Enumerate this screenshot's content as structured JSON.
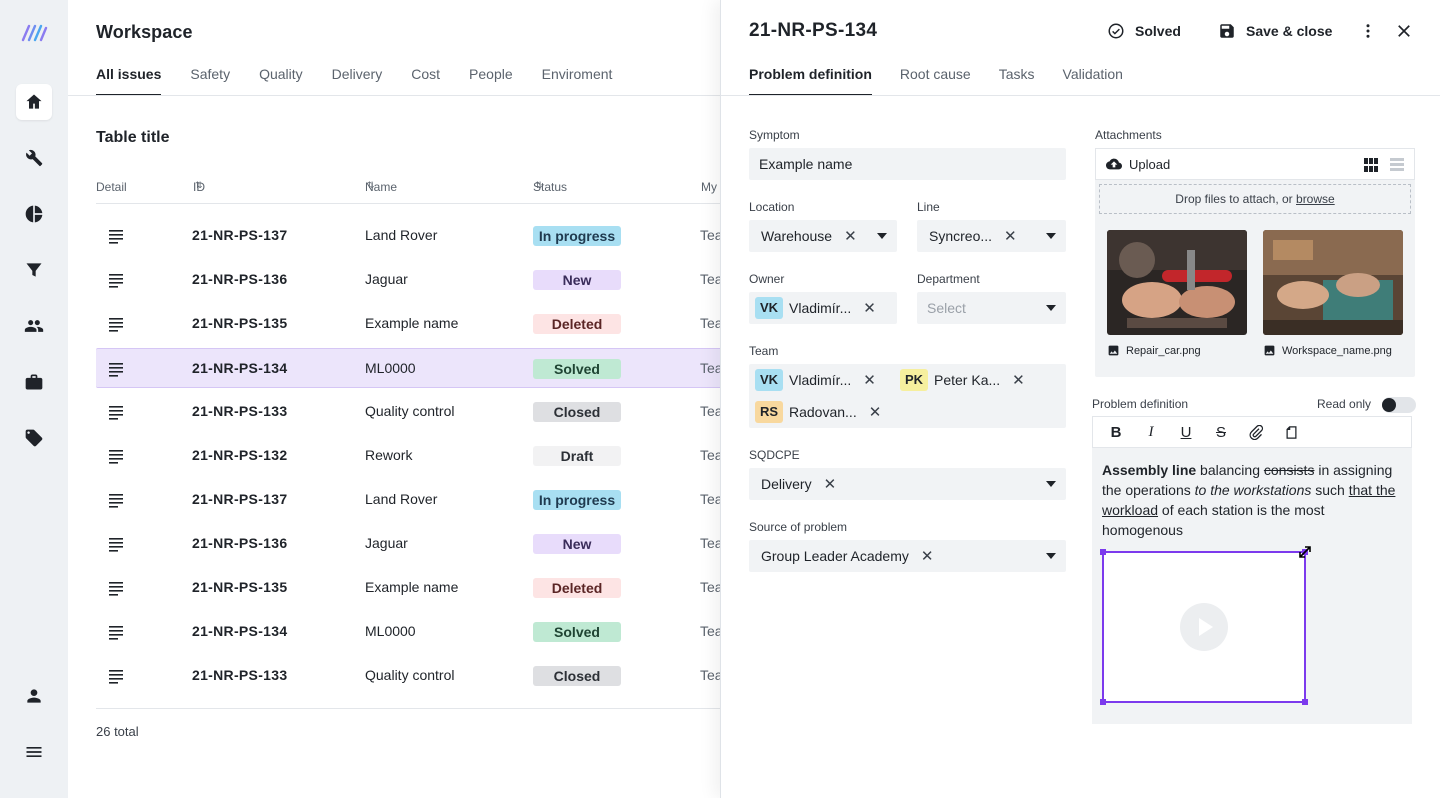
{
  "sidebar": {
    "items": [
      {
        "name": "home",
        "active": true
      },
      {
        "name": "tools"
      },
      {
        "name": "reports"
      },
      {
        "name": "filter"
      },
      {
        "name": "people"
      },
      {
        "name": "briefcase"
      },
      {
        "name": "tags"
      },
      {
        "name": "profile"
      },
      {
        "name": "menu"
      }
    ]
  },
  "workspace": {
    "title": "Workspace",
    "tabs": [
      "All issues",
      "Safety",
      "Quality",
      "Delivery",
      "Cost",
      "People",
      "Enviroment"
    ],
    "active_tab": "All issues",
    "table_title": "Table title",
    "columns": [
      "Detail",
      "ID",
      "Name",
      "Status",
      "My"
    ],
    "rows": [
      {
        "id": "21-NR-PS-137",
        "name": "Land Rover",
        "status": "In progress",
        "team": "Tea"
      },
      {
        "id": "21-NR-PS-136",
        "name": "Jaguar",
        "status": "New",
        "team": "Tea"
      },
      {
        "id": "21-NR-PS-135",
        "name": "Example name",
        "status": "Deleted",
        "team": "Tea"
      },
      {
        "id": "21-NR-PS-134",
        "name": "ML0000",
        "status": "Solved",
        "team": "Tea",
        "selected": true
      },
      {
        "id": "21-NR-PS-133",
        "name": "Quality control",
        "status": "Closed",
        "team": "Tea"
      },
      {
        "id": "21-NR-PS-132",
        "name": "Rework",
        "status": "Draft",
        "team": "Tea"
      },
      {
        "id": "21-NR-PS-137",
        "name": "Land Rover",
        "status": "In progress",
        "team": "Tea"
      },
      {
        "id": "21-NR-PS-136",
        "name": "Jaguar",
        "status": "New",
        "team": "Tea"
      },
      {
        "id": "21-NR-PS-135",
        "name": "Example name",
        "status": "Deleted",
        "team": "Tea"
      },
      {
        "id": "21-NR-PS-134",
        "name": "ML0000",
        "status": "Solved",
        "team": "Tea"
      },
      {
        "id": "21-NR-PS-133",
        "name": "Quality control",
        "status": "Closed",
        "team": "Tea"
      }
    ],
    "total": "26 total"
  },
  "panel": {
    "title": "21-NR-PS-134",
    "status_label": "Solved",
    "save_label": "Save & close",
    "tabs": [
      "Problem definition",
      "Root cause",
      "Tasks",
      "Validation"
    ],
    "symptom": {
      "label": "Symptom",
      "value": "Example name"
    },
    "location": {
      "label": "Location",
      "value": "Warehouse"
    },
    "line": {
      "label": "Line",
      "value": "Syncreo..."
    },
    "owner": {
      "label": "Owner",
      "initials": "VK",
      "value": "Vladimír..."
    },
    "department": {
      "label": "Department",
      "placeholder": "Select"
    },
    "team": {
      "label": "Team",
      "members": [
        {
          "initials": "VK",
          "name": "Vladimír..."
        },
        {
          "initials": "PK",
          "name": "Peter Ka..."
        },
        {
          "initials": "RS",
          "name": "Radovan..."
        }
      ]
    },
    "sqdcpe": {
      "label": "SQDCPE",
      "value": "Delivery"
    },
    "source": {
      "label": "Source of problem",
      "value": "Group Leader Academy"
    },
    "attachments": {
      "label": "Attachments",
      "upload_label": "Upload",
      "drop_text": "Drop files to attach, or ",
      "browse_text": "browse",
      "files": [
        "Repair_car.png",
        "Workspace_name.png"
      ]
    },
    "problem_definition": {
      "label": "Problem definition",
      "read_only_label": "Read only",
      "text_bold": "Assembly line",
      "text_1": " balancing ",
      "text_strike": "consists",
      "text_2": " in assigning the operations ",
      "text_italic": "to the workstations",
      "text_3": " such ",
      "text_underline": "that the workload",
      "text_4": " of each station is the most homogenous"
    }
  }
}
